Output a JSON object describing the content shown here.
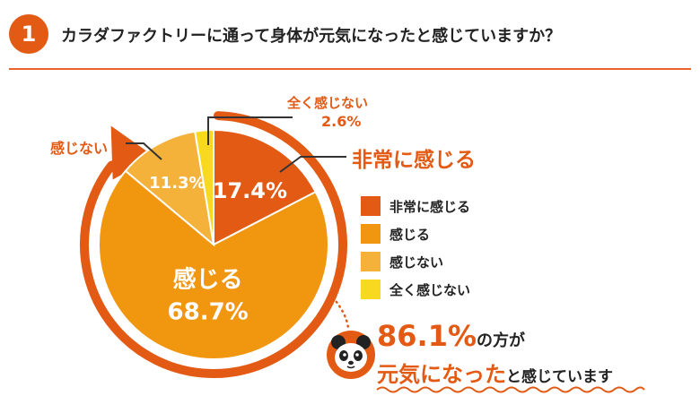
{
  "question": {
    "number": "1",
    "text": "カラダファクトリーに通って身体が元気になったと感じていますか？"
  },
  "colors": {
    "accent": "#e35a14",
    "slices": [
      "#e35a14",
      "#f1960f",
      "#f5b23a",
      "#f9d91f"
    ]
  },
  "chart_data": {
    "type": "pie",
    "categories": [
      "非常に感じる",
      "感じる",
      "感じない",
      "全く感じない"
    ],
    "values": [
      17.4,
      68.7,
      11.3,
      2.6
    ],
    "value_labels": [
      "17.4%",
      "68.7%",
      "11.3%",
      "2.6%"
    ],
    "legend": [
      "非常に感じる",
      "感じる",
      "感じない",
      "全く感じない"
    ],
    "legend_position": "right",
    "title": ""
  },
  "callouts": {
    "very_much": "非常に感じる",
    "not": "感じない",
    "not_at_all": "全く感じない",
    "not_at_all_pct": "2.6%",
    "feel": "感じる",
    "feel_pct": "68.7%"
  },
  "summary": {
    "pct": "86.1%",
    "line1_rest": "の方が",
    "line2_em": "元気になった",
    "line2_rest": "と感じています"
  }
}
